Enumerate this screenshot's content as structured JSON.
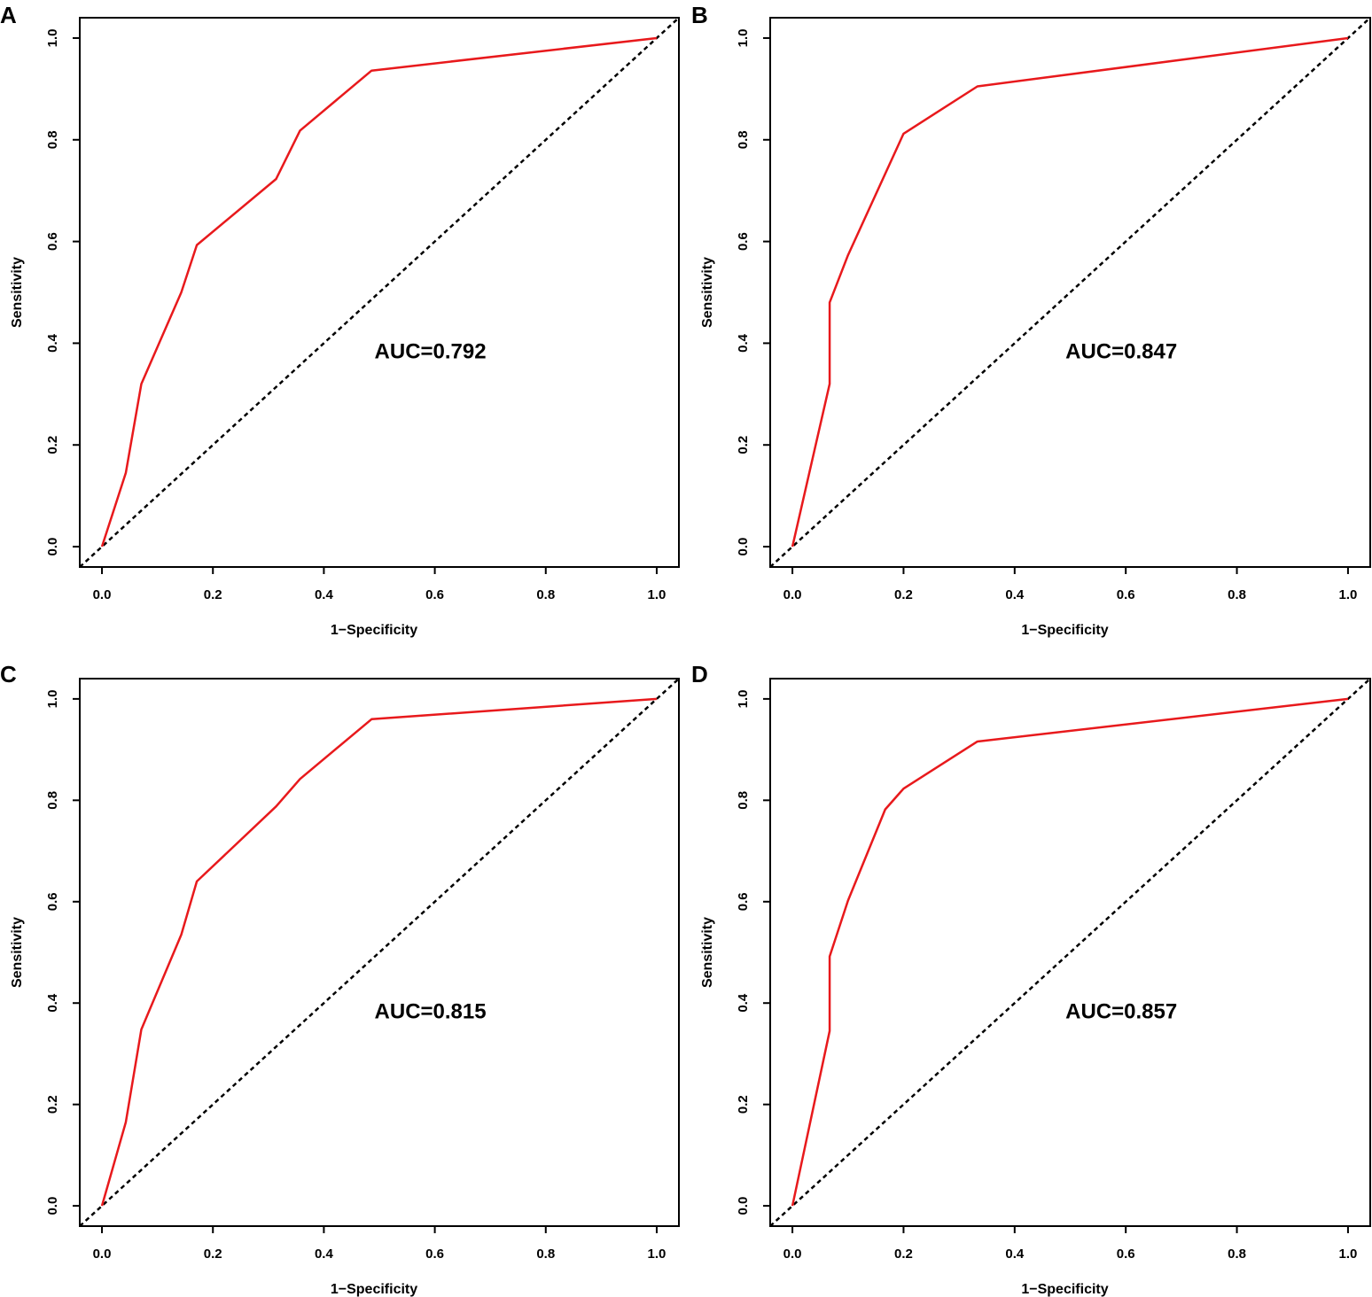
{
  "figure": {
    "panel_order": [
      "A",
      "B",
      "C",
      "D"
    ]
  },
  "colors": {
    "roc_line": "#e8191c",
    "diagonal": "#000000",
    "axes": "#000000"
  },
  "chart_data": [
    {
      "panel": "A",
      "type": "line",
      "title": "",
      "xlabel": "1−Specificity",
      "ylabel": "Sensitivity",
      "xlim": [
        -0.04,
        1.04
      ],
      "ylim": [
        -0.04,
        1.04
      ],
      "xticks": [
        "0.0",
        "0.2",
        "0.4",
        "0.6",
        "0.8",
        "1.0"
      ],
      "yticks": [
        "0.0",
        "0.2",
        "0.4",
        "0.6",
        "0.8",
        "1.0"
      ],
      "annotation": "AUC=0.792",
      "series": [
        {
          "name": "ROC",
          "x": [
            0,
            0.043,
            0.071,
            0.143,
            0.171,
            0.314,
            0.357,
            0.486,
            1.0
          ],
          "y": [
            0,
            0.145,
            0.32,
            0.5,
            0.593,
            0.723,
            0.818,
            0.936,
            1.0
          ]
        },
        {
          "name": "Reference",
          "x": [
            -0.04,
            1.04
          ],
          "y": [
            -0.04,
            1.04
          ]
        }
      ]
    },
    {
      "panel": "B",
      "type": "line",
      "title": "",
      "xlabel": "1−Specificity",
      "ylabel": "Sensitivity",
      "xlim": [
        -0.04,
        1.04
      ],
      "ylim": [
        -0.04,
        1.04
      ],
      "xticks": [
        "0.0",
        "0.2",
        "0.4",
        "0.6",
        "0.8",
        "1.0"
      ],
      "yticks": [
        "0.0",
        "0.2",
        "0.4",
        "0.6",
        "0.8",
        "1.0"
      ],
      "annotation": "AUC=0.847",
      "series": [
        {
          "name": "ROC",
          "x": [
            0,
            0.067,
            0.067,
            0.1,
            0.2,
            0.333,
            1.0
          ],
          "y": [
            0,
            0.32,
            0.48,
            0.573,
            0.812,
            0.905,
            1.0
          ]
        },
        {
          "name": "Reference",
          "x": [
            -0.04,
            1.04
          ],
          "y": [
            -0.04,
            1.04
          ]
        }
      ]
    },
    {
      "panel": "C",
      "type": "line",
      "title": "",
      "xlabel": "1−Specificity",
      "ylabel": "Sensitivity",
      "xlim": [
        -0.04,
        1.04
      ],
      "ylim": [
        -0.04,
        1.04
      ],
      "xticks": [
        "0.0",
        "0.2",
        "0.4",
        "0.6",
        "0.8",
        "1.0"
      ],
      "yticks": [
        "0.0",
        "0.2",
        "0.4",
        "0.6",
        "0.8",
        "1.0"
      ],
      "annotation": "AUC=0.815",
      "series": [
        {
          "name": "ROC",
          "x": [
            0,
            0.043,
            0.071,
            0.143,
            0.171,
            0.314,
            0.357,
            0.486,
            1.0
          ],
          "y": [
            0,
            0.165,
            0.348,
            0.535,
            0.64,
            0.788,
            0.842,
            0.96,
            1.0
          ]
        },
        {
          "name": "Reference",
          "x": [
            -0.04,
            1.04
          ],
          "y": [
            -0.04,
            1.04
          ]
        }
      ]
    },
    {
      "panel": "D",
      "type": "line",
      "title": "",
      "xlabel": "1−Specificity",
      "ylabel": "Sensitivity",
      "xlim": [
        -0.04,
        1.04
      ],
      "ylim": [
        -0.04,
        1.04
      ],
      "xticks": [
        "0.0",
        "0.2",
        "0.4",
        "0.6",
        "0.8",
        "1.0"
      ],
      "yticks": [
        "0.0",
        "0.2",
        "0.4",
        "0.6",
        "0.8",
        "1.0"
      ],
      "annotation": "AUC=0.857",
      "series": [
        {
          "name": "ROC",
          "x": [
            0,
            0.067,
            0.067,
            0.1,
            0.167,
            0.2,
            0.333,
            1.0
          ],
          "y": [
            0,
            0.345,
            0.492,
            0.602,
            0.782,
            0.823,
            0.916,
            1.0
          ]
        },
        {
          "name": "Reference",
          "x": [
            -0.04,
            1.04
          ],
          "y": [
            -0.04,
            1.04
          ]
        }
      ]
    }
  ]
}
